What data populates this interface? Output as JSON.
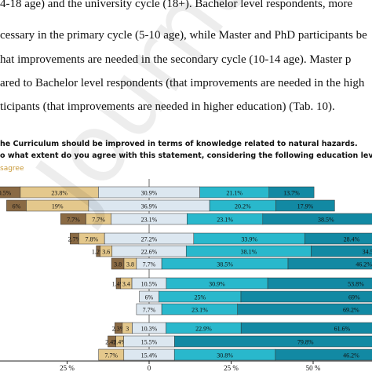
{
  "paragraph": {
    "lines": [
      "4-18 age) and the university cycle (18+). Bachelor level respondents, more",
      "cessary in the primary cycle (5-10 age), while Master and PhD participants be",
      "hat improvements are needed in the secondary cycle (10-14 age). Master p",
      "ared to Bachelor level respondents (that improvements are needed in the high",
      "ticipants (that improvements are needed in higher education) (Tab. 10)."
    ]
  },
  "figure": {
    "title_line1": "he  Curriculum should be improved in terms of knowledge related to natural hazards.",
    "title_line2": "o what extent do you agree with this statement, considering the following education levels?",
    "legend_fragment": "sagree"
  },
  "watermark": "Journal Pre-proof",
  "colors": {
    "strongly_disagree": "#8a6a44",
    "disagree": "#e4c88c",
    "neutral": "#dce7f0",
    "agree": "#29b8cc",
    "strongly_agree": "#1289a3"
  },
  "chart_data": {
    "type": "bar",
    "orientation": "diverging-stacked-horizontal",
    "xlim": [
      -25,
      50
    ],
    "xticks": [
      -25,
      0,
      25,
      50
    ],
    "xtick_labels": [
      "25 %",
      "0",
      "25 %",
      "50 %"
    ],
    "series_order": [
      "strongly_disagree",
      "disagree",
      "neutral",
      "agree",
      "strongly_agree"
    ],
    "rows": [
      {
        "values": [
          10.5,
          23.8,
          30.9,
          21.1,
          13.7
        ],
        "labels": [
          "10.5%",
          "23.8%",
          "30.9%",
          "21.1%",
          "13.7%"
        ]
      },
      {
        "values": [
          6,
          19,
          36.9,
          20.2,
          17.9
        ],
        "labels": [
          "6%",
          "19%",
          "36.9%",
          "20.2%",
          "17.9%"
        ]
      },
      {
        "values": [
          7.7,
          7.7,
          23.1,
          23.1,
          38.5
        ],
        "labels": [
          "7.7%",
          "7.7%",
          "23.1%",
          "23.1%",
          "38.5%"
        ]
      },
      {
        "values": [
          2.7,
          7.8,
          27.2,
          33.9,
          28.4
        ],
        "labels": [
          "2.7%",
          "7.8%",
          "27.2%",
          "33.9%",
          "28.4%"
        ]
      },
      {
        "values": [
          1.2,
          3.6,
          22.6,
          38.1,
          34.5
        ],
        "labels": [
          "1.2%",
          "3.6",
          "22.6%",
          "38.1%",
          "34.5"
        ]
      },
      {
        "values": [
          3.8,
          3.8,
          7.7,
          38.5,
          46.2
        ],
        "labels": [
          "3.8",
          "3.8",
          "7.7%",
          "38.5%",
          "46.2%"
        ]
      },
      {
        "values": [
          1.4,
          3.4,
          10.5,
          30.9,
          53.8
        ],
        "labels": [
          "1.4%",
          "3.4",
          "10.5%",
          "30.9%",
          "53.8%"
        ]
      },
      {
        "values": [
          0,
          0,
          6,
          25,
          69
        ],
        "labels": [
          "",
          "",
          "6%",
          "25%",
          "69%"
        ]
      },
      {
        "values": [
          0,
          0,
          7.7,
          23.1,
          69.2
        ],
        "labels": [
          "",
          "",
          "7.7%",
          "23.1%",
          "69.2%"
        ]
      },
      {
        "values": [
          2.3,
          3,
          10.3,
          22.9,
          61.6
        ],
        "labels": [
          "2.3%",
          "3",
          "10.3%",
          "22.9%",
          "61.6%"
        ]
      },
      {
        "values": [
          2.4,
          2.4,
          15.5,
          0,
          79.8
        ],
        "labels": [
          "2.4%",
          "2.4%",
          "15.5%",
          "",
          "79.8%"
        ]
      },
      {
        "values": [
          0,
          7.7,
          15.4,
          30.8,
          46.2
        ],
        "labels": [
          "",
          "7.7%",
          "15.4%",
          "30.8%",
          "46.2%"
        ]
      }
    ]
  }
}
